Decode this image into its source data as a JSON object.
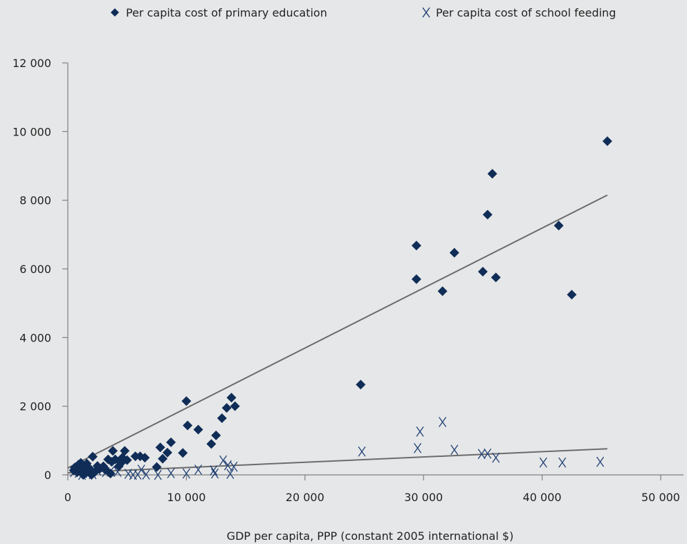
{
  "chart_data": {
    "type": "scatter",
    "title": "",
    "xlabel": "GDP per capita, PPP (constant 2005 international $)",
    "ylabel": "",
    "xlim": [
      0,
      50000
    ],
    "ylim": [
      0,
      12000
    ],
    "x_ticks": [
      0,
      10000,
      20000,
      30000,
      40000,
      50000
    ],
    "y_ticks": [
      0,
      2000,
      4000,
      6000,
      8000,
      10000,
      12000
    ],
    "x_tick_labels": [
      "0",
      "10 000",
      "20 000",
      "30 000",
      "40 000",
      "50 000"
    ],
    "y_tick_labels": [
      "0",
      "2 000",
      "4 000",
      "6 000",
      "8 000",
      "10 000",
      "12 000"
    ],
    "grid": false,
    "legend_position": "top",
    "colors": {
      "education": "#0f2d57",
      "feeding": "#1f3f73",
      "trendline": "#6b6b6b",
      "axis": "#7f7f7f",
      "background": "#e6e7e8"
    },
    "series": [
      {
        "name": "Per capita cost of primary education",
        "marker": "diamond",
        "points": [
          [
            500,
            130
          ],
          [
            600,
            220
          ],
          [
            800,
            80
          ],
          [
            900,
            300
          ],
          [
            1000,
            170
          ],
          [
            1100,
            350
          ],
          [
            1300,
            0
          ],
          [
            1400,
            250
          ],
          [
            1500,
            100
          ],
          [
            1600,
            330
          ],
          [
            1800,
            200
          ],
          [
            2000,
            0
          ],
          [
            2100,
            530
          ],
          [
            2300,
            90
          ],
          [
            2500,
            260
          ],
          [
            2700,
            180
          ],
          [
            3000,
            250
          ],
          [
            3200,
            150
          ],
          [
            3400,
            450
          ],
          [
            3600,
            40
          ],
          [
            3700,
            380
          ],
          [
            3800,
            700
          ],
          [
            4000,
            450
          ],
          [
            4300,
            250
          ],
          [
            4500,
            350
          ],
          [
            4600,
            500
          ],
          [
            4800,
            700
          ],
          [
            5000,
            430
          ],
          [
            5700,
            540
          ],
          [
            6100,
            540
          ],
          [
            6500,
            500
          ],
          [
            7500,
            230
          ],
          [
            7800,
            800
          ],
          [
            8000,
            470
          ],
          [
            8400,
            650
          ],
          [
            8700,
            950
          ],
          [
            9700,
            640
          ],
          [
            10000,
            2150
          ],
          [
            10100,
            1440
          ],
          [
            11000,
            1320
          ],
          [
            12100,
            900
          ],
          [
            12500,
            1150
          ],
          [
            13000,
            1650
          ],
          [
            13400,
            1950
          ],
          [
            13800,
            2250
          ],
          [
            14100,
            2000
          ],
          [
            24700,
            2630
          ],
          [
            29400,
            5700
          ],
          [
            29400,
            6680
          ],
          [
            31600,
            5350
          ],
          [
            32600,
            6470
          ],
          [
            35000,
            5920
          ],
          [
            35400,
            7580
          ],
          [
            35800,
            8770
          ],
          [
            36100,
            5750
          ],
          [
            41400,
            7260
          ],
          [
            42500,
            5250
          ],
          [
            45500,
            9720
          ]
        ]
      },
      {
        "name": "Per capita cost of school feeding",
        "marker": "x",
        "points": [
          [
            500,
            80
          ],
          [
            700,
            150
          ],
          [
            900,
            60
          ],
          [
            1200,
            0
          ],
          [
            1500,
            100
          ],
          [
            1800,
            50
          ],
          [
            2100,
            20
          ],
          [
            2500,
            120
          ],
          [
            2800,
            180
          ],
          [
            3200,
            80
          ],
          [
            3600,
            100
          ],
          [
            4200,
            90
          ],
          [
            5100,
            30
          ],
          [
            5500,
            0
          ],
          [
            5900,
            10
          ],
          [
            6200,
            150
          ],
          [
            6600,
            10
          ],
          [
            7600,
            0
          ],
          [
            8700,
            50
          ],
          [
            10000,
            40
          ],
          [
            11000,
            150
          ],
          [
            12300,
            130
          ],
          [
            12400,
            40
          ],
          [
            13100,
            420
          ],
          [
            13500,
            280
          ],
          [
            13700,
            30
          ],
          [
            14000,
            240
          ],
          [
            24800,
            680
          ],
          [
            29500,
            780
          ],
          [
            29700,
            1260
          ],
          [
            31600,
            1540
          ],
          [
            32600,
            730
          ],
          [
            34900,
            610
          ],
          [
            35400,
            620
          ],
          [
            36100,
            500
          ],
          [
            40100,
            360
          ],
          [
            41700,
            360
          ],
          [
            44900,
            380
          ]
        ]
      }
    ],
    "trendlines": [
      {
        "series": "Per capita cost of primary education",
        "x": [
          0,
          45500
        ],
        "y": [
          200,
          8150
        ]
      },
      {
        "series": "Per capita cost of school feeding",
        "x": [
          0,
          45500
        ],
        "y": [
          60,
          760
        ]
      }
    ]
  }
}
